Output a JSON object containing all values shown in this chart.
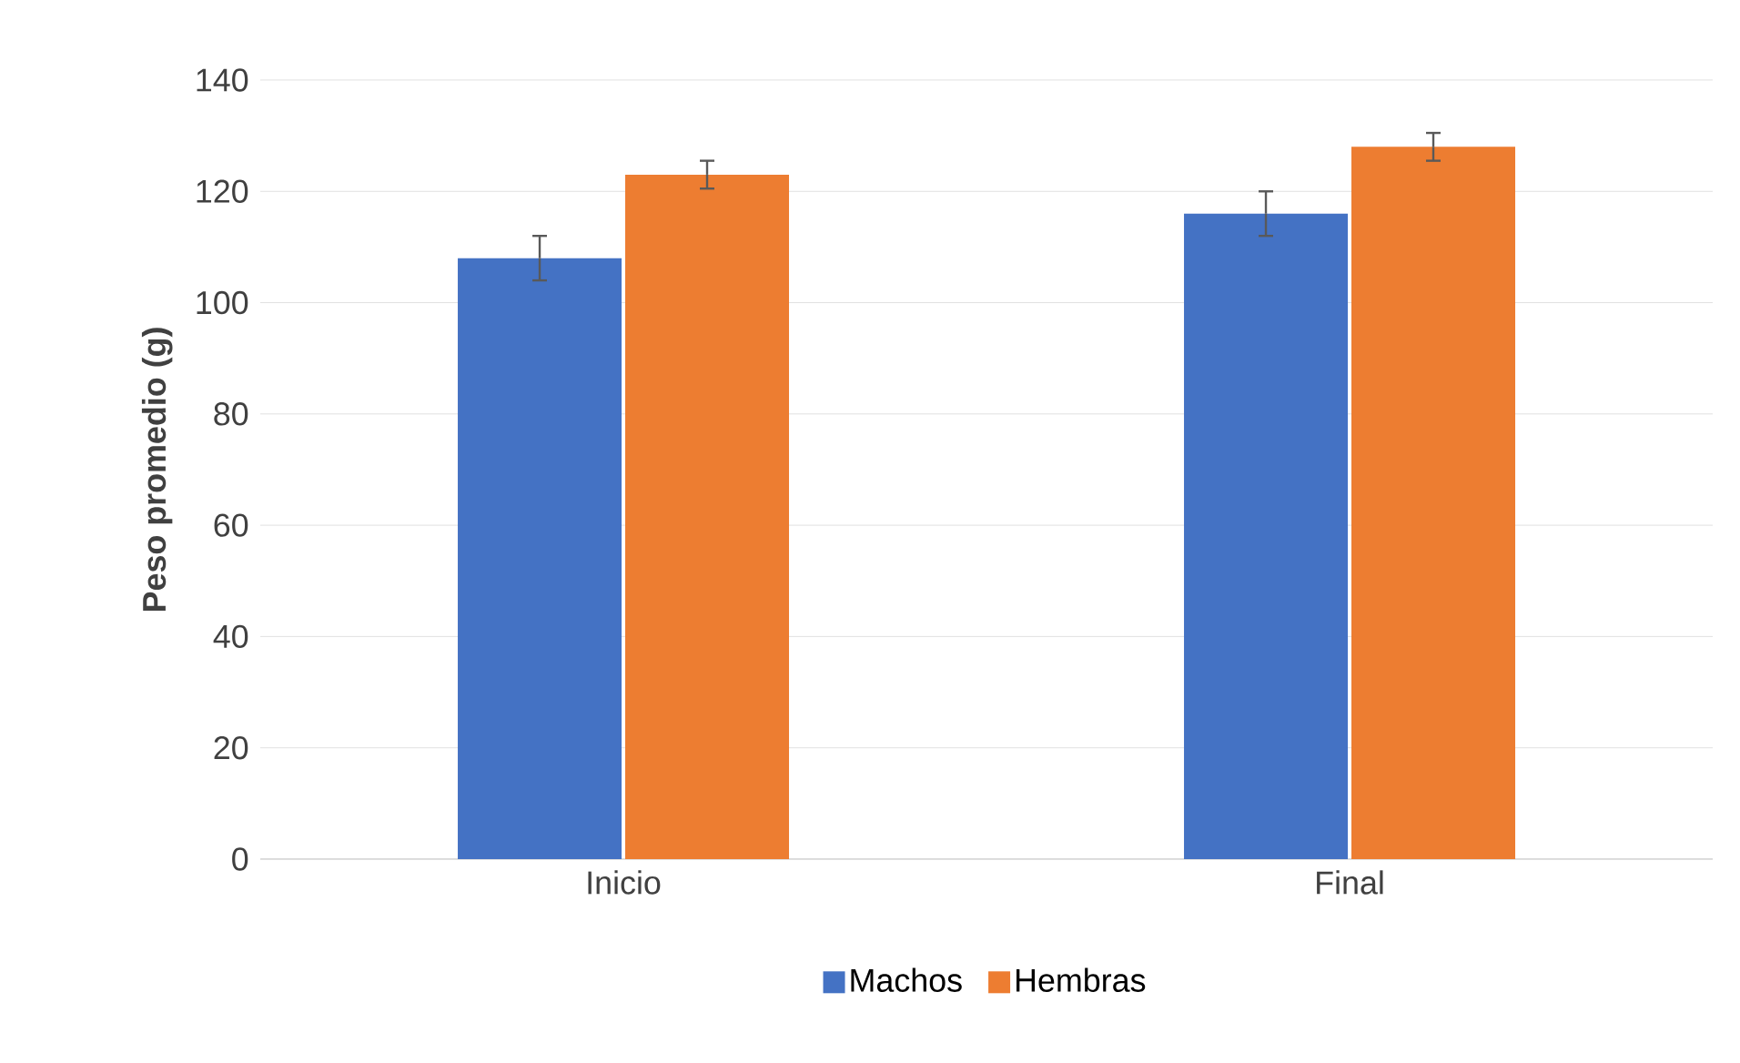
{
  "chart_data": {
    "type": "bar",
    "ylabel": "Peso promedio (g)",
    "categories": [
      "Inicio",
      "Final"
    ],
    "series": [
      {
        "name": "Machos",
        "color": "#4472c4",
        "values": [
          108,
          116
        ],
        "errors": [
          4,
          4
        ]
      },
      {
        "name": "Hembras",
        "color": "#ed7d31",
        "values": [
          123,
          128
        ],
        "errors": [
          2.5,
          2.5
        ]
      }
    ],
    "ylim": [
      0,
      140
    ],
    "yticks": [
      0,
      20,
      40,
      60,
      80,
      100,
      120,
      140
    ],
    "grid": "y",
    "legend": "bottom"
  }
}
